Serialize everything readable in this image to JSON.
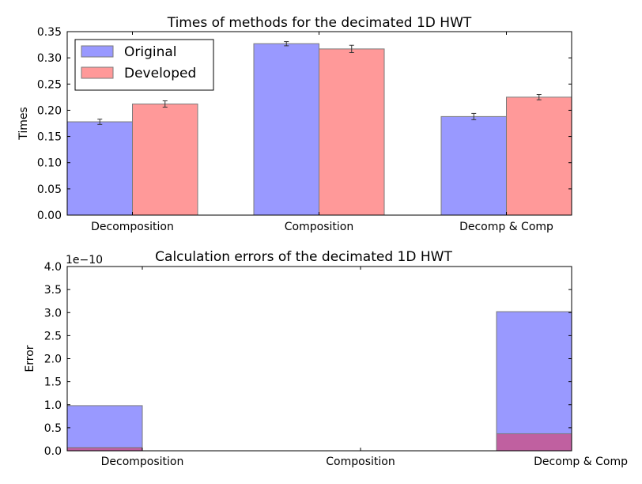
{
  "chart_data": [
    {
      "type": "bar",
      "title": "Times of methods for the decimated 1D HWT",
      "xlabel": "",
      "ylabel": "Times",
      "ylim": [
        0,
        0.35
      ],
      "yticks": [
        "0.00",
        "0.05",
        "0.10",
        "0.15",
        "0.20",
        "0.25",
        "0.30",
        "0.35"
      ],
      "categories": [
        "Decomposition",
        "Composition",
        "Decomp & Comp"
      ],
      "legend_position": "top-left",
      "grid": false,
      "series": [
        {
          "name": "Original",
          "color": "#9999ff",
          "values": [
            0.178,
            0.327,
            0.188
          ],
          "errors": [
            0.005,
            0.004,
            0.006
          ]
        },
        {
          "name": "Developed",
          "color": "#ff9999",
          "values": [
            0.212,
            0.317,
            0.225
          ],
          "errors": [
            0.006,
            0.007,
            0.005
          ]
        }
      ]
    },
    {
      "type": "bar",
      "title": "Calculation errors of the decimated 1D HWT",
      "xlabel": "",
      "ylabel": "Error",
      "scale_label": "1e−10",
      "ylim": [
        0,
        4e-10
      ],
      "yticks": [
        "0.0",
        "0.5",
        "1.0",
        "1.5",
        "2.0",
        "2.5",
        "3.0",
        "3.5",
        "4.0"
      ],
      "categories": [
        "Decomposition",
        "Composition",
        "Decomp & Comp"
      ],
      "grid": false,
      "series": [
        {
          "color": "#9999ff",
          "values": [
            9.8e-11,
            0.0,
            3.02e-10
          ]
        },
        {
          "color": "#c060a0",
          "values": [
            7e-12,
            0.0,
            3.7e-11
          ]
        }
      ]
    }
  ]
}
